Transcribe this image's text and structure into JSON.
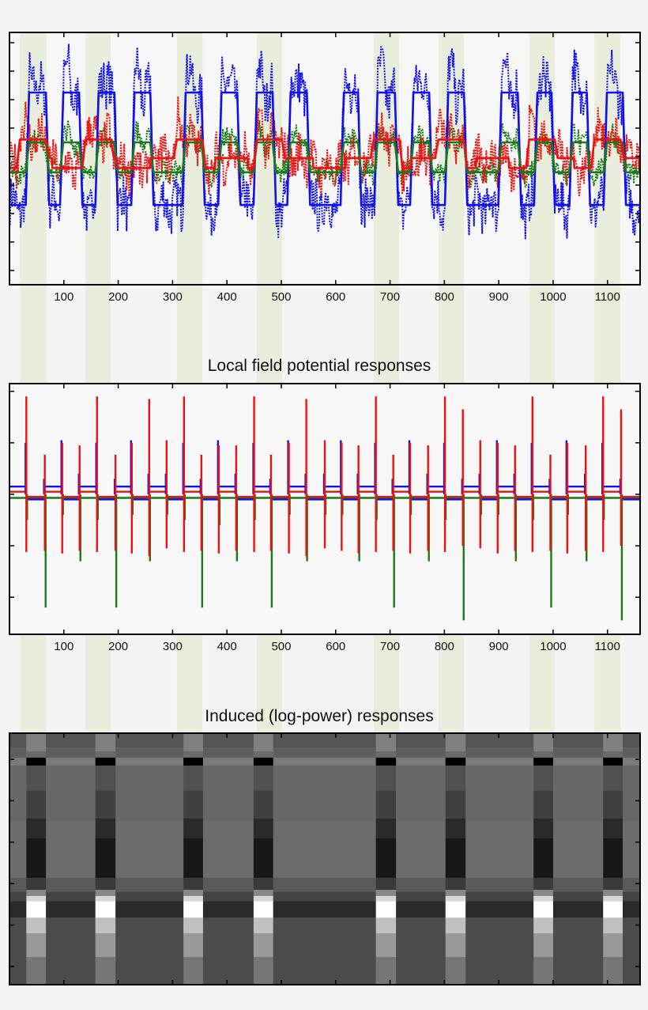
{
  "colors": {
    "blue": "#1010ee",
    "green": "#1a7a1a",
    "red": "#ee1111",
    "band": "#e8eedb",
    "axis": "#000000",
    "plot_bg": "#f7f7f7"
  },
  "chart_data": [
    {
      "type": "line",
      "title": "",
      "xlim": [
        0,
        1160
      ],
      "ylim": [
        -4.5,
        4.36
      ],
      "grid": false,
      "xticks": [
        100,
        200,
        300,
        400,
        500,
        600,
        700,
        800,
        900,
        1000,
        1100
      ],
      "xtick_labels": [
        "100",
        "200",
        "300",
        "400",
        "500",
        "600",
        "700",
        "800",
        "900",
        "1000",
        "1100"
      ],
      "yticks": [
        -4,
        -3,
        -2,
        -1,
        0,
        1,
        2,
        3,
        4
      ],
      "shaded_bands": [
        [
          19,
          68
        ],
        [
          140,
          186
        ],
        [
          308,
          355
        ],
        [
          455,
          501
        ],
        [
          670,
          717
        ],
        [
          789,
          836
        ],
        [
          956,
          1003
        ],
        [
          1076,
          1124
        ]
      ],
      "on_intervals": [
        [
          36,
          67
        ],
        [
          99,
          128
        ],
        [
          164,
          193
        ],
        [
          230,
          259
        ],
        [
          324,
          353
        ],
        [
          390,
          419
        ],
        [
          455,
          484
        ],
        [
          517,
          547
        ],
        [
          615,
          641
        ],
        [
          677,
          709
        ],
        [
          743,
          772
        ],
        [
          807,
          836
        ],
        [
          905,
          935
        ],
        [
          971,
          997
        ],
        [
          1036,
          1062
        ],
        [
          1099,
          1128
        ]
      ],
      "series": [
        {
          "color": "blue",
          "style": "solid",
          "high": 2.25,
          "low": -1.7,
          "follows": "on_intervals"
        },
        {
          "color": "green",
          "style": "solid",
          "high": 0.5,
          "low": -0.55,
          "follows": "on_intervals"
        },
        {
          "color": "red",
          "style": "solid",
          "high": 0.6,
          "low": [
            -0.05,
            -0.4
          ],
          "follows": "shaded_bands"
        },
        {
          "color": "blue",
          "style": "dotted",
          "noise": 0.8,
          "follows": "on_intervals"
        },
        {
          "color": "green",
          "style": "dotted",
          "noise": 0.35,
          "follows": "on_intervals"
        },
        {
          "color": "red",
          "style": "dotted",
          "noise": 0.7,
          "follows": "shaded_bands"
        }
      ]
    },
    {
      "type": "line",
      "title": "Local field potential responses",
      "xlim": [
        0,
        1160
      ],
      "ylim": [
        -2.72,
        2.15
      ],
      "grid": false,
      "xticks": [
        100,
        200,
        300,
        400,
        500,
        600,
        700,
        800,
        900,
        1000,
        1100
      ],
      "xtick_labels": [
        "100",
        "200",
        "300",
        "400",
        "500",
        "600",
        "700",
        "800",
        "900",
        "1000",
        "1100"
      ],
      "yticks": [
        -2,
        -1,
        0,
        1,
        2
      ],
      "baselines": {
        "blue": [
          0.15,
          -0.1
        ],
        "red": [
          0.05,
          -0.05
        ],
        "green": [
          -0.07,
          -0.07
        ]
      },
      "spikes_columns": [
        "x",
        "red_up",
        "red_down",
        "green_down",
        "blue_up"
      ],
      "spikes": [
        [
          31,
          1.9,
          -1.12,
          -0.5,
          1.0
        ],
        [
          65,
          0.77,
          -1.1,
          -2.2,
          0.3
        ],
        [
          97,
          1.0,
          -1.15,
          -0.4,
          1.05
        ],
        [
          129,
          0.95,
          -1.1,
          -1.3,
          0.4
        ],
        [
          161,
          1.9,
          -1.12,
          -0.5,
          1.0
        ],
        [
          195,
          0.77,
          -1.1,
          -2.2,
          0.3
        ],
        [
          225,
          1.0,
          -1.15,
          -0.4,
          1.05
        ],
        [
          257,
          1.85,
          -1.2,
          -1.3,
          0.4
        ],
        [
          289,
          1.05,
          -1.05,
          -0.4,
          0.4
        ],
        [
          321,
          1.9,
          -1.12,
          -0.5,
          1.0
        ],
        [
          353,
          0.77,
          -1.1,
          -2.2,
          0.3
        ],
        [
          385,
          0.95,
          -1.15,
          -0.6,
          1.05
        ],
        [
          417,
          0.95,
          -1.1,
          -1.3,
          0.4
        ],
        [
          450,
          1.9,
          -1.12,
          -0.5,
          1.0
        ],
        [
          481,
          0.77,
          -1.1,
          -2.2,
          0.3
        ],
        [
          514,
          1.0,
          -1.15,
          -0.4,
          1.05
        ],
        [
          546,
          1.85,
          -1.2,
          -1.3,
          0.4
        ],
        [
          580,
          1.05,
          -1.05,
          -0.4,
          0.4
        ],
        [
          611,
          1.0,
          -1.1,
          -0.4,
          1.05
        ],
        [
          642,
          0.95,
          -1.15,
          -1.3,
          0.4
        ],
        [
          674,
          1.9,
          -1.12,
          -0.5,
          1.0
        ],
        [
          706,
          0.77,
          -1.1,
          -2.2,
          0.3
        ],
        [
          737,
          1.0,
          -1.15,
          -0.4,
          1.05
        ],
        [
          770,
          0.95,
          -1.1,
          -1.3,
          0.4
        ],
        [
          801,
          1.9,
          -1.12,
          -0.5,
          1.0
        ],
        [
          834,
          1.65,
          -1.0,
          -2.45,
          0.3
        ],
        [
          866,
          1.05,
          -1.05,
          -0.4,
          0.4
        ],
        [
          898,
          1.0,
          -1.15,
          -0.4,
          1.05
        ],
        [
          930,
          0.95,
          -1.1,
          -1.3,
          0.4
        ],
        [
          962,
          1.9,
          -1.12,
          -0.5,
          1.0
        ],
        [
          995,
          0.77,
          -1.1,
          -2.2,
          0.3
        ],
        [
          1026,
          1.0,
          -1.15,
          -0.4,
          1.05
        ],
        [
          1060,
          0.95,
          -1.1,
          -1.3,
          0.4
        ],
        [
          1092,
          1.9,
          -1.12,
          -0.5,
          1.0
        ],
        [
          1125,
          1.65,
          -1.0,
          -2.45,
          0.3
        ]
      ]
    },
    {
      "type": "heatmap",
      "title": "Induced (log-power) responses",
      "xlim": [
        0,
        1160
      ],
      "ylim": [
        0.37,
        6.44
      ],
      "xticks": [
        100,
        200,
        300,
        400,
        500,
        600,
        700,
        800,
        900,
        1000,
        1100
      ],
      "yticks": [
        1,
        2,
        3,
        4,
        5,
        6
      ],
      "active_columns": [
        [
          31,
          67
        ],
        [
          158,
          195
        ],
        [
          320,
          356
        ],
        [
          449,
          485
        ],
        [
          674,
          711
        ],
        [
          802,
          839
        ],
        [
          964,
          1000
        ],
        [
          1092,
          1128
        ]
      ],
      "baseline_profile": [
        [
          0.37,
          0.71,
          85
        ],
        [
          0.71,
          0.96,
          94
        ],
        [
          0.96,
          1.15,
          122
        ],
        [
          1.15,
          2.5,
          104
        ],
        [
          2.5,
          3.86,
          108
        ],
        [
          3.86,
          4.2,
          90
        ],
        [
          4.2,
          4.43,
          68
        ],
        [
          4.43,
          4.82,
          42
        ],
        [
          4.82,
          6.44,
          76
        ]
      ],
      "active_profile": [
        [
          0.37,
          0.81,
          128
        ],
        [
          0.81,
          0.96,
          106
        ],
        [
          0.96,
          1.15,
          0
        ],
        [
          1.15,
          1.76,
          80
        ],
        [
          1.76,
          2.43,
          64
        ],
        [
          2.43,
          2.91,
          42
        ],
        [
          2.91,
          3.86,
          24
        ],
        [
          3.86,
          4.15,
          58
        ],
        [
          4.15,
          4.3,
          136
        ],
        [
          4.3,
          4.43,
          216
        ],
        [
          4.43,
          4.82,
          255
        ],
        [
          4.82,
          5.2,
          192
        ],
        [
          5.2,
          5.77,
          153
        ],
        [
          5.77,
          6.44,
          119
        ]
      ]
    }
  ]
}
